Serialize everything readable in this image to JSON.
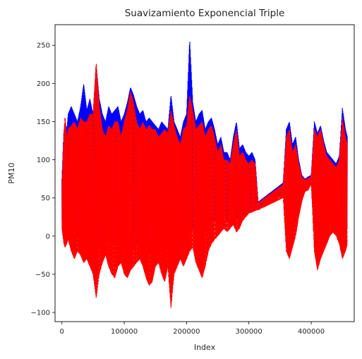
{
  "chart_data": {
    "type": "line",
    "title": "Suavizamiento Exponencial Triple",
    "xlabel": "Index",
    "ylabel": "PM10",
    "xlim": [
      -11000,
      469000
    ],
    "ylim": [
      -112,
      277
    ],
    "xticks": [
      0,
      100000,
      200000,
      300000,
      400000
    ],
    "xtick_labels": [
      "0",
      "100000",
      "200000",
      "300000",
      "400000"
    ],
    "yticks": [
      -100,
      -50,
      0,
      50,
      100,
      150,
      200,
      250
    ],
    "ytick_labels": [
      "−100",
      "−50",
      "0",
      "50",
      "100",
      "150",
      "200",
      "250"
    ],
    "grid": false,
    "series": [
      {
        "style": "solid",
        "color": "#0000ff",
        "x": [
          0,
          3000,
          5000,
          8000,
          10000,
          15000,
          20000,
          25000,
          30000,
          35000,
          40000,
          45000,
          50000,
          55000,
          60000,
          65000,
          70000,
          75000,
          80000,
          85000,
          90000,
          95000,
          100000,
          105000,
          110000,
          115000,
          120000,
          125000,
          130000,
          135000,
          140000,
          145000,
          150000,
          155000,
          160000,
          165000,
          170000,
          175000,
          180000,
          185000,
          190000,
          195000,
          200000,
          205000,
          210000,
          215000,
          220000,
          225000,
          230000,
          235000,
          240000,
          245000,
          250000,
          255000,
          260000,
          265000,
          270000,
          275000,
          280000,
          285000,
          290000,
          295000,
          300000,
          305000,
          310000,
          315000,
          355000,
          360000,
          365000,
          370000,
          375000,
          380000,
          385000,
          390000,
          395000,
          400000,
          405000,
          410000,
          415000,
          420000,
          425000,
          430000,
          435000,
          440000,
          445000,
          450000,
          455000,
          458000
        ],
        "upper": [
          75,
          135,
          150,
          140,
          160,
          170,
          160,
          150,
          170,
          200,
          165,
          180,
          160,
          225,
          180,
          160,
          150,
          170,
          160,
          165,
          170,
          150,
          160,
          175,
          195,
          185,
          170,
          160,
          165,
          150,
          155,
          150,
          145,
          140,
          150,
          145,
          140,
          185,
          150,
          140,
          130,
          150,
          160,
          258,
          175,
          150,
          160,
          165,
          140,
          150,
          155,
          140,
          120,
          130,
          110,
          110,
          100,
          130,
          150,
          115,
          120,
          110,
          105,
          110,
          100,
          45,
          70,
          140,
          150,
          120,
          130,
          100,
          80,
          75,
          78,
          80,
          150,
          135,
          145,
          125,
          110,
          105,
          100,
          95,
          105,
          168,
          140,
          130
        ],
        "lower": [
          20,
          0,
          -5,
          0,
          5,
          -5,
          -10,
          0,
          -5,
          -10,
          -10,
          -5,
          -10,
          -20,
          -15,
          -5,
          0,
          -5,
          -10,
          -15,
          -5,
          0,
          -10,
          -15,
          -20,
          -15,
          -10,
          -5,
          -10,
          -15,
          -20,
          -25,
          -10,
          -5,
          -15,
          -20,
          -5,
          0,
          -10,
          -15,
          -10,
          -5,
          0,
          5,
          10,
          0,
          -5,
          5,
          10,
          15,
          20,
          20,
          25,
          20,
          25,
          20,
          25,
          30,
          20,
          25,
          28,
          30,
          32,
          33,
          35,
          36,
          55,
          10,
          5,
          10,
          20,
          35,
          50,
          60,
          62,
          70,
          0,
          -5,
          0,
          5,
          10,
          15,
          20,
          15,
          10,
          -5,
          5,
          10
        ]
      },
      {
        "style": "dashed",
        "color": "#ff0000",
        "x": [
          0,
          3000,
          5000,
          8000,
          10000,
          15000,
          20000,
          25000,
          30000,
          35000,
          40000,
          45000,
          50000,
          55000,
          60000,
          65000,
          70000,
          75000,
          80000,
          85000,
          90000,
          95000,
          100000,
          105000,
          110000,
          115000,
          120000,
          125000,
          130000,
          135000,
          140000,
          145000,
          150000,
          155000,
          160000,
          165000,
          170000,
          175000,
          180000,
          185000,
          190000,
          195000,
          200000,
          205000,
          210000,
          215000,
          220000,
          225000,
          230000,
          235000,
          240000,
          245000,
          250000,
          255000,
          260000,
          265000,
          270000,
          275000,
          280000,
          285000,
          290000,
          295000,
          300000,
          305000,
          310000,
          315000,
          355000,
          360000,
          365000,
          370000,
          375000,
          380000,
          385000,
          390000,
          395000,
          400000,
          405000,
          410000,
          415000,
          420000,
          425000,
          430000,
          435000,
          440000,
          445000,
          450000,
          455000,
          458000
        ],
        "upper": [
          70,
          130,
          158,
          130,
          140,
          145,
          150,
          140,
          155,
          150,
          150,
          160,
          160,
          228,
          170,
          140,
          130,
          145,
          140,
          150,
          150,
          130,
          150,
          165,
          190,
          175,
          150,
          140,
          150,
          140,
          145,
          140,
          140,
          130,
          135,
          140,
          135,
          165,
          145,
          130,
          120,
          140,
          145,
          185,
          165,
          140,
          145,
          150,
          130,
          140,
          145,
          130,
          110,
          120,
          100,
          100,
          95,
          120,
          140,
          105,
          110,
          100,
          95,
          100,
          95,
          44,
          68,
          130,
          140,
          110,
          120,
          95,
          78,
          74,
          76,
          78,
          140,
          130,
          140,
          120,
          105,
          100,
          95,
          90,
          100,
          155,
          130,
          120
        ],
        "lower": [
          10,
          -10,
          -15,
          -10,
          -5,
          -20,
          -30,
          -20,
          -25,
          -35,
          -30,
          -40,
          -50,
          -82,
          -50,
          -35,
          -25,
          -40,
          -50,
          -55,
          -40,
          -35,
          -50,
          -55,
          -45,
          -40,
          -35,
          -30,
          -40,
          -55,
          -65,
          -60,
          -40,
          -35,
          -50,
          -60,
          -40,
          -95,
          -50,
          -40,
          -30,
          -40,
          -30,
          -20,
          -15,
          -35,
          -45,
          -55,
          -40,
          -20,
          -10,
          -5,
          0,
          5,
          10,
          5,
          10,
          15,
          5,
          10,
          20,
          25,
          30,
          31,
          33,
          34,
          50,
          -20,
          -30,
          -15,
          0,
          25,
          45,
          58,
          60,
          68,
          -20,
          -45,
          -30,
          -20,
          -10,
          0,
          5,
          0,
          -10,
          -30,
          -20,
          -10
        ]
      }
    ]
  }
}
